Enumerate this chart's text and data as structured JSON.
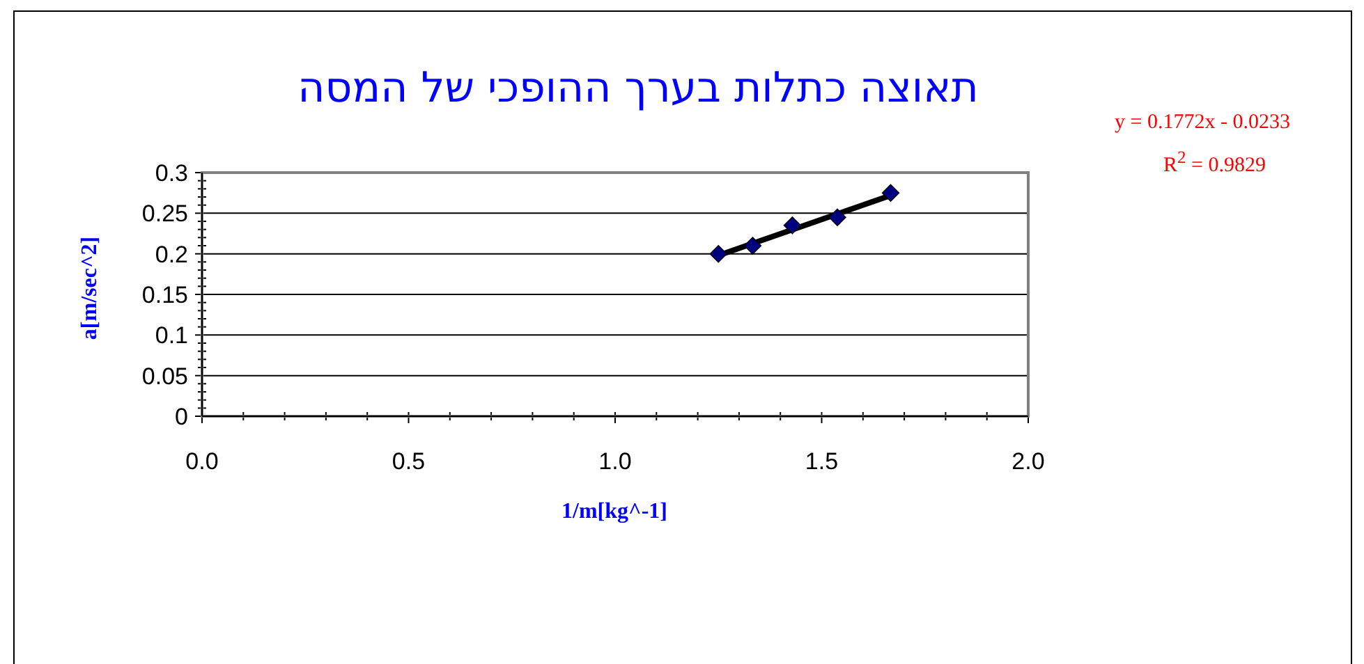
{
  "chart_data": {
    "type": "scatter",
    "title": "תאוצה כתלות בערך ההופכי של המסה",
    "xlabel": "1/m[kg^-1]",
    "ylabel": "a[m/sec^2]",
    "xlim": [
      0,
      2
    ],
    "ylim": [
      0,
      0.3
    ],
    "xticks": [
      {
        "value": 0,
        "label": "0.0"
      },
      {
        "value": 0.1,
        "label": null
      },
      {
        "value": 0.2,
        "label": null
      },
      {
        "value": 0.3,
        "label": null
      },
      {
        "value": 0.4,
        "label": null
      },
      {
        "value": 0.5,
        "label": "0.5"
      },
      {
        "value": 0.6,
        "label": null
      },
      {
        "value": 0.7,
        "label": null
      },
      {
        "value": 0.8,
        "label": null
      },
      {
        "value": 0.9,
        "label": null
      },
      {
        "value": 1,
        "label": "1.0"
      },
      {
        "value": 1.1,
        "label": null
      },
      {
        "value": 1.2,
        "label": null
      },
      {
        "value": 1.3,
        "label": null
      },
      {
        "value": 1.4,
        "label": null
      },
      {
        "value": 1.5,
        "label": "1.5"
      },
      {
        "value": 1.6,
        "label": null
      },
      {
        "value": 1.7,
        "label": null
      },
      {
        "value": 1.8,
        "label": null
      },
      {
        "value": 1.9,
        "label": null
      },
      {
        "value": 2,
        "label": "2.0"
      }
    ],
    "yticks": [
      0,
      {
        "value": 0.01,
        "label": null
      },
      {
        "value": 0.02,
        "label": null
      },
      {
        "value": 0.03,
        "label": null
      },
      {
        "value": 0.04,
        "label": null
      },
      0.05,
      {
        "value": 0.06,
        "label": null
      },
      {
        "value": 0.07,
        "label": null
      },
      {
        "value": 0.08,
        "label": null
      },
      {
        "value": 0.09,
        "label": null
      },
      0.1,
      {
        "value": 0.11,
        "label": null
      },
      {
        "value": 0.12,
        "label": null
      },
      {
        "value": 0.13,
        "label": null
      },
      {
        "value": 0.14,
        "label": null
      },
      0.15,
      {
        "value": 0.16,
        "label": null
      },
      {
        "value": 0.17,
        "label": null
      },
      {
        "value": 0.18,
        "label": null
      },
      {
        "value": 0.19,
        "label": null
      },
      0.2,
      {
        "value": 0.21,
        "label": null
      },
      {
        "value": 0.22,
        "label": null
      },
      {
        "value": 0.23,
        "label": null
      },
      {
        "value": 0.24,
        "label": null
      },
      0.25,
      {
        "value": 0.26,
        "label": null
      },
      {
        "value": 0.27,
        "label": null
      },
      {
        "value": 0.28,
        "label": null
      },
      {
        "value": 0.29,
        "label": null
      },
      0.3
    ],
    "grid": "y",
    "series": [
      {
        "type": "line",
        "color": "#000000",
        "marker": "none",
        "x": [
          1.25,
          1.667
        ],
        "values": [
          0.198,
          0.272
        ]
      },
      {
        "type": "scatter",
        "color": "#000080",
        "marker": "diamond",
        "x": [
          1.25,
          1.333,
          1.429,
          1.538,
          1.667
        ],
        "values": [
          0.2,
          0.21,
          0.235,
          0.245,
          0.275
        ]
      }
    ],
    "annotations": [
      "y = 0.1772x - 0.0233",
      "R$^{2}$ = 0.9829"
    ]
  }
}
